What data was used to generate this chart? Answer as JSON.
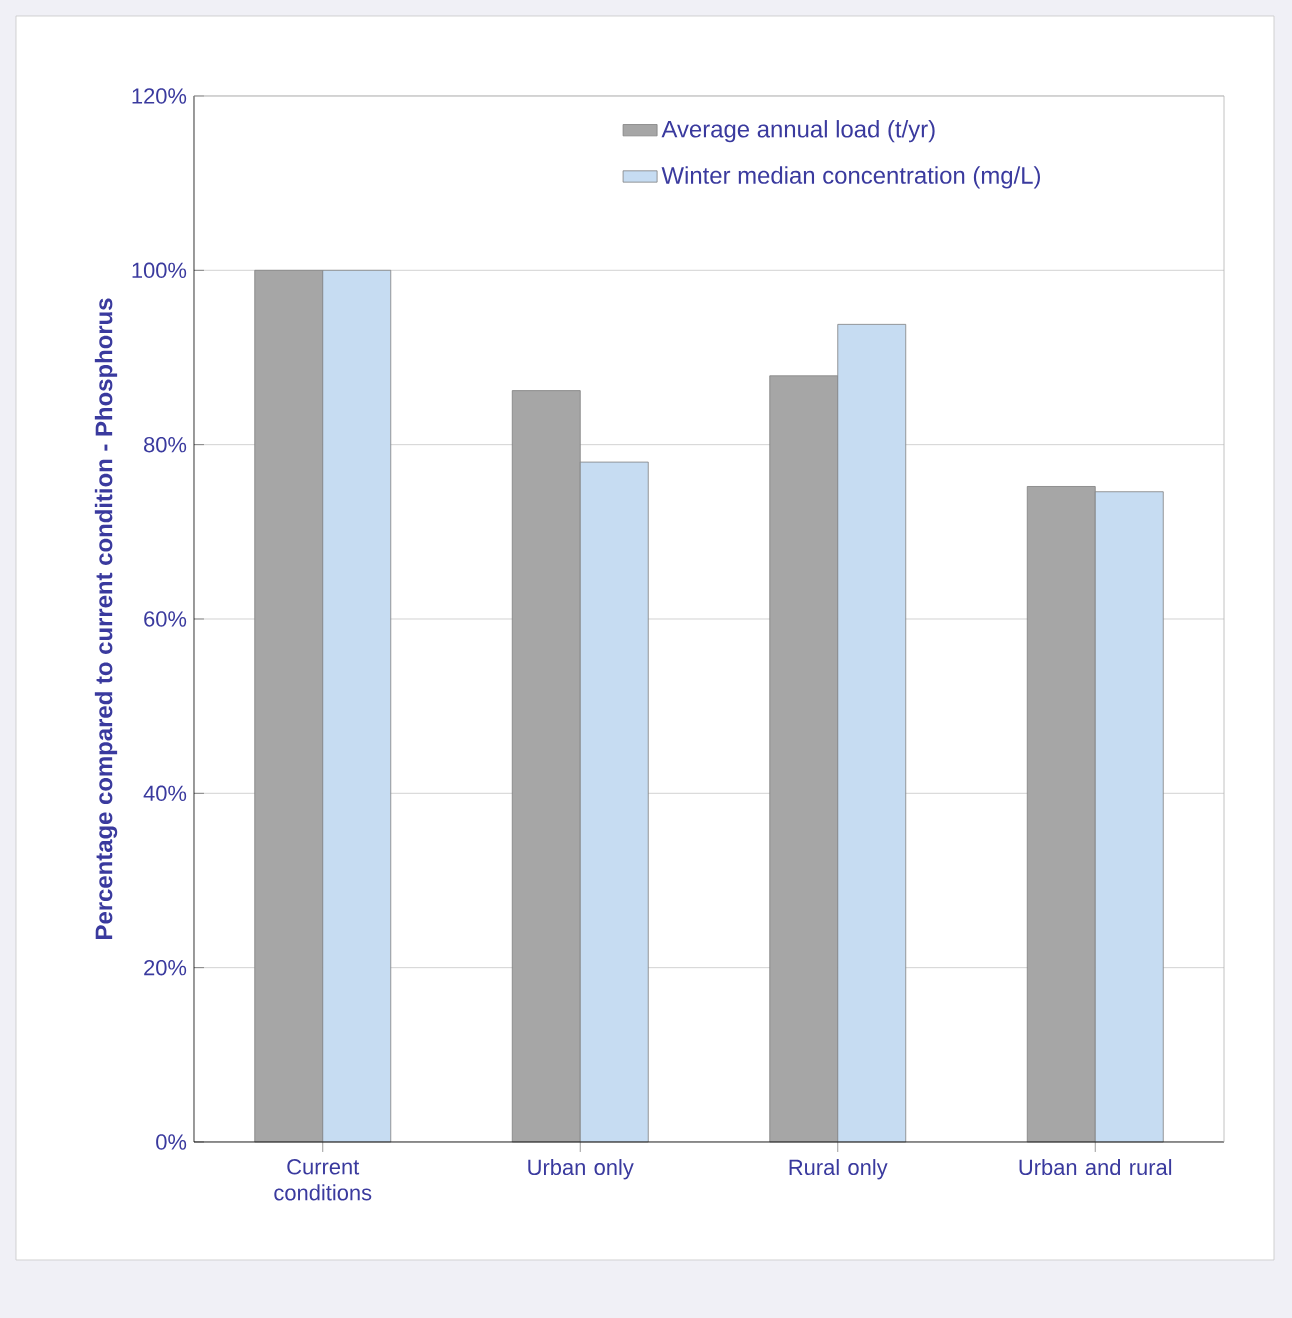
{
  "chart_data": {
    "type": "bar",
    "ylabel": "Percentage compared to current condition - Phosphorus",
    "categories": [
      "Current conditions",
      "Urban only",
      "Rural only",
      "Urban and rural"
    ],
    "series": [
      {
        "name": "Average annual load (t/yr)",
        "color": "#a6a6a6",
        "values": [
          100,
          86.2,
          87.9,
          75.2
        ]
      },
      {
        "name": "Winter median concentration (mg/L)",
        "color": "#c6dcf2",
        "values": [
          100,
          78.0,
          93.8,
          74.6
        ]
      }
    ],
    "ylim": [
      0,
      120
    ],
    "yticks": [
      {
        "value": 0,
        "label": "0%"
      },
      {
        "value": 20,
        "label": "20%"
      },
      {
        "value": 40,
        "label": "40%"
      },
      {
        "value": 60,
        "label": "60%"
      },
      {
        "value": 80,
        "label": "80%"
      },
      {
        "value": 100,
        "label": "100%"
      },
      {
        "value": 120,
        "label": "120%"
      }
    ],
    "grid": "y",
    "legend": "top right"
  }
}
